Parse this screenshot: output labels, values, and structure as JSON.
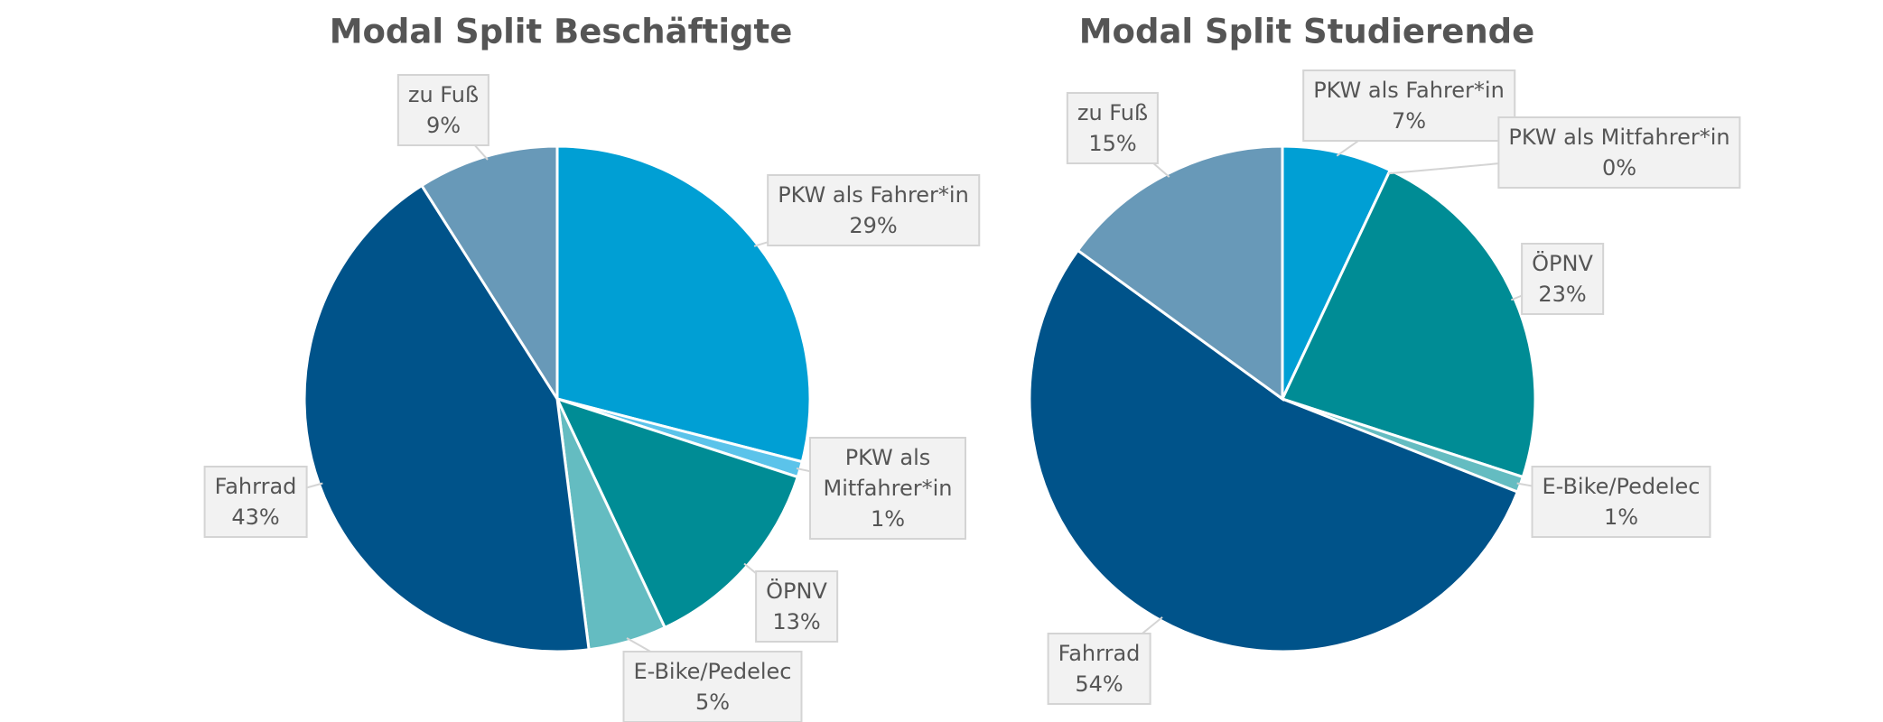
{
  "chart_data": [
    {
      "type": "pie",
      "title": "Modal Split Beschäftigte",
      "categories": [
        "PKW als Fahrer*in",
        "PKW als Mitfahrer*in",
        "ÖPNV",
        "E-Bike/Pedelec",
        "Fahrrad",
        "zu Fuß"
      ],
      "values": [
        29,
        1,
        13,
        5,
        43,
        9
      ],
      "value_labels": [
        "29%",
        "1%",
        "13%",
        "5%",
        "43%",
        "9%"
      ],
      "colors": [
        "#009fd4",
        "#5bc3ea",
        "#008c95",
        "#64bcc1",
        "#00538a",
        "#6899b8"
      ]
    },
    {
      "type": "pie",
      "title": "Modal Split Studierende",
      "categories": [
        "PKW als Fahrer*in",
        "PKW als Mitfahrer*in",
        "ÖPNV",
        "E-Bike/Pedelec",
        "Fahrrad",
        "zu Fuß"
      ],
      "values": [
        7,
        0,
        23,
        1,
        54,
        15
      ],
      "value_labels": [
        "7%",
        "0%",
        "23%",
        "1%",
        "54%",
        "15%"
      ],
      "colors": [
        "#009fd4",
        "#5bc3ea",
        "#008c95",
        "#64bcc1",
        "#00538a",
        "#6899b8"
      ]
    }
  ]
}
